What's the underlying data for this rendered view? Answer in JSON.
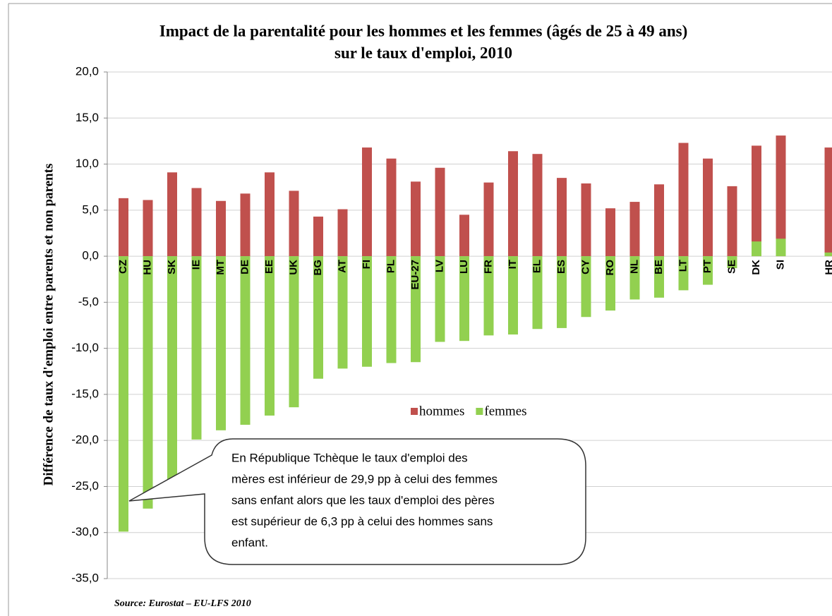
{
  "chart_data": {
    "type": "bar",
    "title": [
      "Impact de la parentalité pour les hommes et les femmes (âgés de 25 à 49 ans)",
      "sur le taux d'emploi, 2010"
    ],
    "y_label": "Différence de taux d'emploi entre parents et non parents",
    "source": "Source: Eurostat – EU-LFS 2010",
    "annotations": [
      "En République Tchèque le taux d'emploi des",
      "mères est inférieur de 29,9 pp à celui des femmes",
      "sans enfant alors que les taux d'emploi des pères",
      "est supérieur de 6,3 pp à celui des hommes sans",
      "enfant."
    ],
    "categories": [
      "CZ",
      "HU",
      "SK",
      "IE",
      "MT",
      "DE",
      "EE",
      "UK",
      "BG",
      "AT",
      "FI",
      "PL",
      "EU-27",
      "LV",
      "LU",
      "FR",
      "IT",
      "EL",
      "ES",
      "CY",
      "RO",
      "NL",
      "BE",
      "LT",
      "PT",
      "SE",
      "DK",
      "SI",
      null,
      "HR"
    ],
    "series": [
      {
        "name": "hommes",
        "color": "#c0504d",
        "values": [
          6.3,
          6.1,
          9.1,
          7.4,
          6.0,
          6.8,
          9.1,
          7.1,
          4.3,
          5.1,
          11.8,
          10.6,
          8.1,
          9.6,
          4.5,
          8.0,
          11.4,
          11.1,
          8.5,
          7.9,
          5.2,
          5.9,
          7.8,
          12.3,
          10.6,
          7.6,
          12.0,
          13.1,
          null,
          11.8
        ]
      },
      {
        "name": "femmes",
        "color": "#92d050",
        "values": [
          -29.9,
          -27.4,
          -25.0,
          -19.9,
          -18.9,
          -18.3,
          -17.3,
          -16.4,
          -13.3,
          -12.2,
          -12.0,
          -11.6,
          -11.5,
          -9.3,
          -9.2,
          -8.6,
          -8.5,
          -7.9,
          -7.8,
          -6.6,
          -5.9,
          -4.7,
          -4.5,
          -3.7,
          -3.1,
          -1.3,
          1.6,
          1.9,
          null,
          0.4
        ]
      }
    ],
    "ylim": [
      -35,
      20
    ],
    "yticks": [
      {
        "value": -35,
        "label": "-35,0"
      },
      {
        "value": -30,
        "label": "-30,0"
      },
      {
        "value": -25,
        "label": "-25,0"
      },
      {
        "value": -20,
        "label": "-20,0"
      },
      {
        "value": -15,
        "label": "-15,0"
      },
      {
        "value": -10,
        "label": "-10,0"
      },
      {
        "value": -5,
        "label": "-5,0"
      },
      {
        "value": 0,
        "label": "0,0"
      },
      {
        "value": 5,
        "label": "5,0"
      },
      {
        "value": 10,
        "label": "10,0"
      },
      {
        "value": 15,
        "label": "15,0"
      },
      {
        "value": 20,
        "label": "20,0"
      }
    ],
    "grid": true
  }
}
